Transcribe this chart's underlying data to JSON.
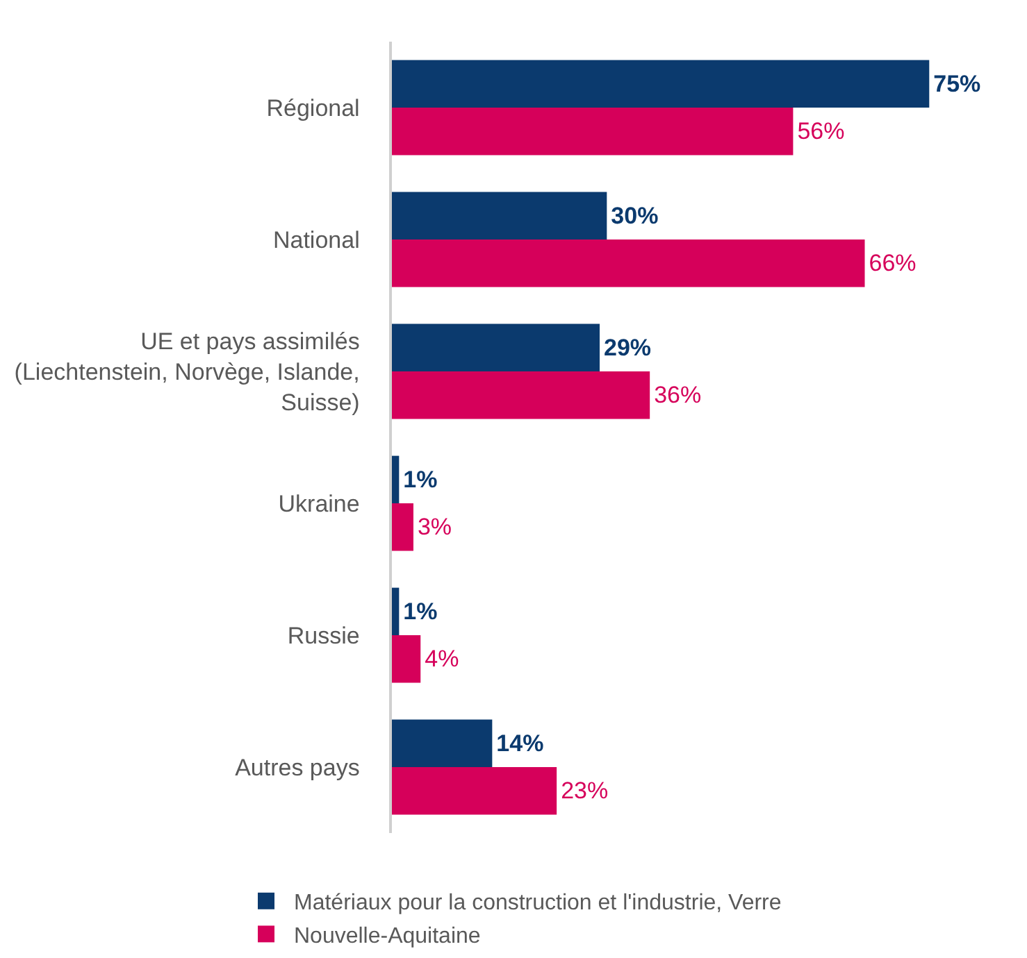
{
  "chart_data": {
    "type": "bar",
    "orientation": "horizontal",
    "categories": [
      "Régional",
      "National",
      "UE et pays assimilés\n(Liechtenstein, Norvège, Islande,\nSuisse)",
      "Ukraine",
      "Russie",
      "Autres pays"
    ],
    "series": [
      {
        "name": "Matériaux pour la construction et l'industrie, Verre",
        "color": "#0b3a6e",
        "values": [
          75,
          30,
          29,
          1,
          1,
          14
        ],
        "value_labels": [
          "75%",
          "30%",
          "29%",
          "1%",
          "1%",
          "14%"
        ]
      },
      {
        "name": "Nouvelle-Aquitaine",
        "color": "#d6005a",
        "values": [
          56,
          66,
          36,
          3,
          4,
          23
        ],
        "value_labels": [
          "56%",
          "66%",
          "36%",
          "3%",
          "4%",
          "23%"
        ]
      }
    ],
    "legend": "bottom",
    "tick_labels": "y"
  }
}
